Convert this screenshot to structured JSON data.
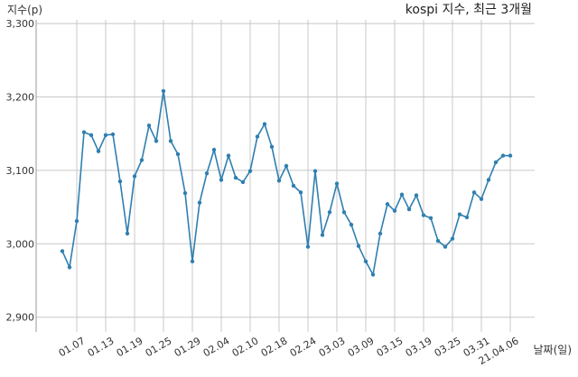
{
  "chart_data": {
    "type": "line",
    "title": "kospi 지수, 최근 3개월",
    "ylabel": "지수(p)",
    "xlabel": "날짜(일)",
    "ylim": [
      2880,
      3305
    ],
    "yticks": [
      2900,
      3000,
      3100,
      3200,
      3300
    ],
    "ytick_labels": [
      "2,900",
      "3,000",
      "3,100",
      "3,200",
      "3,300"
    ],
    "grid": true,
    "color": "#2f7fb0",
    "xticks": [
      {
        "index": 2,
        "label": "01.07"
      },
      {
        "index": 6,
        "label": "01.13"
      },
      {
        "index": 10,
        "label": "01.19"
      },
      {
        "index": 14,
        "label": "01.25"
      },
      {
        "index": 18,
        "label": "01.29"
      },
      {
        "index": 22,
        "label": "02.04"
      },
      {
        "index": 26,
        "label": "02.10"
      },
      {
        "index": 30,
        "label": "02.18"
      },
      {
        "index": 34,
        "label": "02.24"
      },
      {
        "index": 38,
        "label": "03.03"
      },
      {
        "index": 42,
        "label": "03.09"
      },
      {
        "index": 46,
        "label": "03.15"
      },
      {
        "index": 50,
        "label": "03.19"
      },
      {
        "index": 54,
        "label": "03.25"
      },
      {
        "index": 58,
        "label": "03.31"
      },
      {
        "index": 62,
        "label": "21.04.06"
      }
    ],
    "values": [
      2990,
      2968,
      3031,
      3152,
      3148,
      3126,
      3148,
      3149,
      3085,
      3014,
      3092,
      3114,
      3161,
      3140,
      3208,
      3140,
      3122,
      3069,
      2976,
      3056,
      3096,
      3128,
      3087,
      3120,
      3090,
      3084,
      3099,
      3146,
      3163,
      3132,
      3086,
      3106,
      3079,
      3070,
      2996,
      3099,
      3012,
      3043,
      3082,
      3043,
      3026,
      2997,
      2976,
      2958,
      3014,
      3054,
      3045,
      3067,
      3047,
      3066,
      3039,
      3035,
      3004,
      2996,
      3007,
      3040,
      3036,
      3070,
      3061,
      3087,
      3111,
      3120,
      3120
    ]
  }
}
